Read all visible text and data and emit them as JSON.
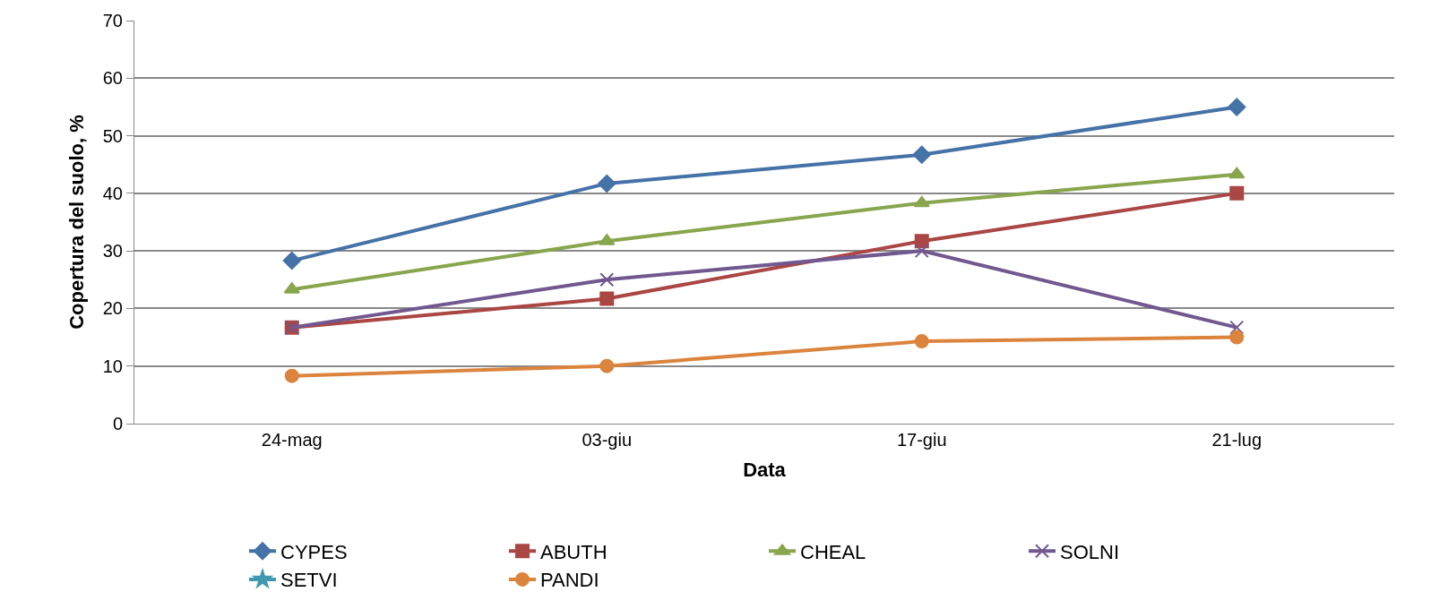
{
  "chart_data": {
    "type": "line",
    "xlabel": "Data",
    "ylabel": "Copertura del suolo, %",
    "categories": [
      "24-mag",
      "03-giu",
      "17-giu",
      "21-lug"
    ],
    "series": [
      {
        "name": "CYPES",
        "color": "#4572a7",
        "marker": "diamond",
        "values": [
          28.3,
          41.7,
          46.7,
          55
        ]
      },
      {
        "name": "ABUTH",
        "color": "#aa4643",
        "marker": "square",
        "values": [
          16.7,
          21.7,
          31.7,
          40
        ]
      },
      {
        "name": "CHEAL",
        "color": "#89a54e",
        "marker": "triangle",
        "values": [
          23.3,
          31.7,
          38.3,
          43.3
        ]
      },
      {
        "name": "SOLNI",
        "color": "#71588f",
        "marker": "cross",
        "values": [
          16.7,
          25,
          30,
          16.7
        ]
      },
      {
        "name": "SETVI",
        "color": "#4198af",
        "marker": "star",
        "values": [
          null,
          null,
          null,
          null
        ]
      },
      {
        "name": "PANDI",
        "color": "#db843d",
        "marker": "circle",
        "values": [
          8.3,
          10,
          14.3,
          15
        ]
      }
    ],
    "ylim": [
      0,
      70
    ],
    "yticks": [
      0,
      10,
      20,
      30,
      40,
      50,
      60,
      70
    ],
    "grid": "y",
    "legend": "bottom",
    "line_style": "solid"
  }
}
